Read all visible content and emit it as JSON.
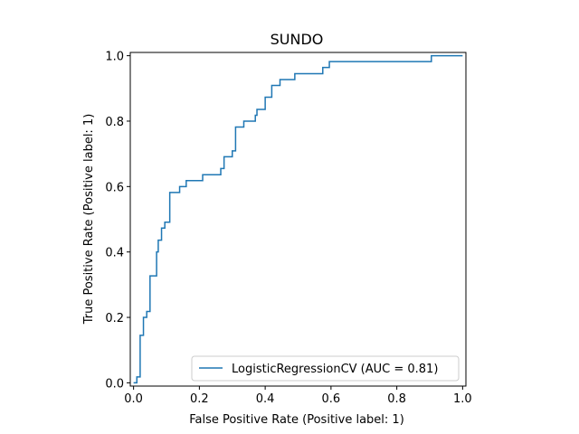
{
  "chart_data": {
    "type": "line",
    "title": "SUNDO",
    "xlabel": "False Positive Rate (Positive label: 1)",
    "ylabel": "True Positive Rate (Positive label: 1)",
    "xlim": [
      -0.01,
      1.01
    ],
    "ylim": [
      -0.01,
      1.01
    ],
    "xticks": [
      0.0,
      0.2,
      0.4,
      0.6,
      0.8,
      1.0
    ],
    "yticks": [
      0.0,
      0.2,
      0.4,
      0.6,
      0.8,
      1.0
    ],
    "xtick_labels": [
      "0.0",
      "0.2",
      "0.4",
      "0.6",
      "0.8",
      "1.0"
    ],
    "ytick_labels": [
      "0.0",
      "0.2",
      "0.4",
      "0.6",
      "0.8",
      "1.0"
    ],
    "grid": false,
    "legend_position": "lower-right",
    "series": [
      {
        "name": "LogisticRegressionCV (AUC = 0.81)",
        "color": "#1f77b4",
        "step": true,
        "x": [
          0.0,
          0.01,
          0.01,
          0.02,
          0.02,
          0.03,
          0.03,
          0.04,
          0.04,
          0.05,
          0.05,
          0.06,
          0.06,
          0.07,
          0.07,
          0.075,
          0.075,
          0.085,
          0.085,
          0.095,
          0.095,
          0.11,
          0.11,
          0.14,
          0.14,
          0.16,
          0.16,
          0.21,
          0.21,
          0.265,
          0.265,
          0.275,
          0.275,
          0.3,
          0.3,
          0.31,
          0.31,
          0.335,
          0.335,
          0.37,
          0.37,
          0.375,
          0.375,
          0.4,
          0.4,
          0.42,
          0.42,
          0.445,
          0.445,
          0.49,
          0.49,
          0.575,
          0.575,
          0.595,
          0.595,
          0.905,
          0.905,
          1.0
        ],
        "y": [
          0.0,
          0.0,
          0.018,
          0.018,
          0.145,
          0.145,
          0.2,
          0.2,
          0.218,
          0.218,
          0.327,
          0.327,
          0.327,
          0.327,
          0.4,
          0.4,
          0.436,
          0.436,
          0.473,
          0.473,
          0.491,
          0.491,
          0.582,
          0.582,
          0.6,
          0.6,
          0.618,
          0.618,
          0.636,
          0.636,
          0.655,
          0.655,
          0.691,
          0.691,
          0.709,
          0.709,
          0.782,
          0.782,
          0.8,
          0.8,
          0.818,
          0.818,
          0.836,
          0.836,
          0.873,
          0.873,
          0.909,
          0.909,
          0.927,
          0.927,
          0.945,
          0.945,
          0.964,
          0.964,
          0.982,
          0.982,
          1.0,
          1.0
        ]
      }
    ]
  }
}
